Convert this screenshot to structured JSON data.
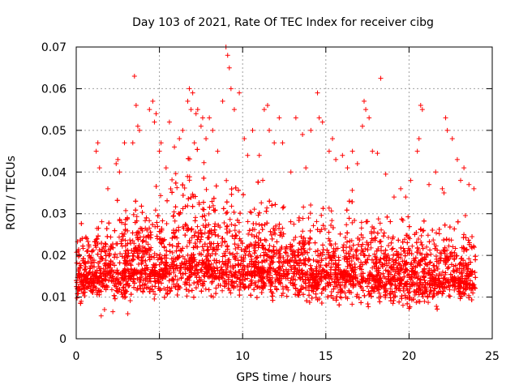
{
  "chart_data": {
    "type": "scatter",
    "title": "Day 103 of 2021, Rate Of TEC Index for receiver cibg",
    "xlabel": "GPS time / hours",
    "ylabel": "ROTI / TECUs",
    "xlim": [
      0,
      25
    ],
    "ylim": [
      0,
      0.07
    ],
    "xticks": [
      "0",
      "5",
      "10",
      "15",
      "20",
      "25"
    ],
    "yticks": [
      "0",
      "0.01",
      "0.02",
      "0.03",
      "0.04",
      "0.05",
      "0.06",
      "0.07"
    ],
    "grid": true,
    "marker": "plus",
    "color": "#ff0000",
    "series": [
      {
        "x": [
          0.0,
          0.2,
          0.4,
          0.6,
          0.8,
          1.0,
          1.2,
          1.4,
          1.6,
          1.8,
          2.0,
          2.2,
          2.4,
          2.6,
          2.8,
          3.0,
          3.2,
          3.4,
          3.6,
          3.8,
          4.0,
          4.2,
          4.4,
          4.6,
          4.8,
          5.0,
          5.2,
          5.4,
          5.6,
          5.8,
          6.0,
          6.2,
          6.4,
          6.6,
          6.8,
          7.0,
          7.2,
          7.4,
          7.6,
          7.8,
          8.0,
          8.2,
          8.4,
          8.6,
          8.8,
          9.0,
          9.2,
          9.4,
          9.6,
          9.8,
          10.0,
          10.2,
          10.4,
          10.6,
          10.8,
          11.0,
          11.2,
          11.4,
          11.6,
          11.8,
          12.0,
          12.2,
          12.4,
          12.6,
          12.8,
          13.0,
          13.2,
          13.4,
          13.6,
          13.8,
          14.0,
          14.2,
          14.4,
          14.6,
          14.8,
          15.0,
          15.2,
          15.4,
          15.6,
          15.8,
          16.0,
          16.2,
          16.4,
          16.6,
          16.8,
          17.0,
          17.2,
          17.4,
          17.6,
          17.8,
          18.0,
          18.2,
          18.4,
          18.6,
          18.8,
          19.0,
          19.2,
          19.4,
          19.6,
          19.8,
          20.0,
          20.2,
          20.4,
          20.6,
          20.8,
          21.0,
          21.2,
          21.4,
          21.6,
          21.8,
          22.0,
          22.2,
          22.4,
          22.6,
          22.8,
          23.0,
          23.2,
          23.4,
          23.6,
          23.8,
          24.0
        ],
        "y_center": [
          0.0155,
          0.016,
          0.0158,
          0.0152,
          0.015,
          0.0148,
          0.0152,
          0.0155,
          0.0158,
          0.016,
          0.0162,
          0.016,
          0.0158,
          0.016,
          0.0163,
          0.0165,
          0.0167,
          0.017,
          0.0168,
          0.0166,
          0.0165,
          0.0168,
          0.017,
          0.0172,
          0.017,
          0.0168,
          0.017,
          0.0172,
          0.0175,
          0.0178,
          0.018,
          0.0182,
          0.0185,
          0.0187,
          0.019,
          0.0192,
          0.019,
          0.0188,
          0.0186,
          0.0185,
          0.0183,
          0.018,
          0.0182,
          0.0185,
          0.0183,
          0.018,
          0.0178,
          0.0176,
          0.0175,
          0.0173,
          0.0172,
          0.017,
          0.0172,
          0.0175,
          0.0173,
          0.017,
          0.0168,
          0.017,
          0.0172,
          0.017,
          0.0168,
          0.0166,
          0.0165,
          0.0167,
          0.017,
          0.0172,
          0.017,
          0.0168,
          0.0166,
          0.0165,
          0.0163,
          0.016,
          0.0162,
          0.0165,
          0.0167,
          0.0165,
          0.0163,
          0.0162,
          0.016,
          0.0158,
          0.016,
          0.0162,
          0.0165,
          0.0163,
          0.016,
          0.0158,
          0.0157,
          0.0158,
          0.016,
          0.0158,
          0.0155,
          0.0152,
          0.015,
          0.0148,
          0.015,
          0.0152,
          0.015,
          0.0148,
          0.0146,
          0.0145,
          0.0147,
          0.015,
          0.0148,
          0.0146,
          0.0145,
          0.0147,
          0.0148,
          0.015,
          0.0148,
          0.0146,
          0.0145,
          0.0147,
          0.015,
          0.0148,
          0.0146,
          0.0145,
          0.0147,
          0.015,
          0.0152,
          0.0153,
          0.015
        ],
        "y_upper": [
          0.029,
          0.03,
          0.028,
          0.027,
          0.028,
          0.03,
          0.032,
          0.03,
          0.029,
          0.031,
          0.033,
          0.035,
          0.034,
          0.036,
          0.035,
          0.034,
          0.036,
          0.038,
          0.04,
          0.038,
          0.036,
          0.035,
          0.034,
          0.036,
          0.038,
          0.037,
          0.035,
          0.036,
          0.039,
          0.041,
          0.04,
          0.042,
          0.044,
          0.045,
          0.046,
          0.047,
          0.046,
          0.045,
          0.044,
          0.042,
          0.04,
          0.039,
          0.038,
          0.037,
          0.039,
          0.041,
          0.043,
          0.042,
          0.04,
          0.039,
          0.038,
          0.037,
          0.036,
          0.036,
          0.038,
          0.04,
          0.039,
          0.037,
          0.036,
          0.035,
          0.034,
          0.034,
          0.035,
          0.036,
          0.035,
          0.034,
          0.033,
          0.034,
          0.036,
          0.037,
          0.036,
          0.035,
          0.034,
          0.036,
          0.038,
          0.037,
          0.036,
          0.035,
          0.034,
          0.033,
          0.033,
          0.034,
          0.035,
          0.036,
          0.035,
          0.034,
          0.036,
          0.038,
          0.037,
          0.035,
          0.033,
          0.031,
          0.03,
          0.03,
          0.029,
          0.028,
          0.029,
          0.03,
          0.031,
          0.03,
          0.029,
          0.028,
          0.03,
          0.031,
          0.032,
          0.031,
          0.03,
          0.03,
          0.031,
          0.032,
          0.033,
          0.032,
          0.031,
          0.03,
          0.029,
          0.029,
          0.03,
          0.031,
          0.03,
          0.03,
          0.029
        ],
        "y_lower": [
          0.008,
          0.008,
          0.0075,
          0.0075,
          0.008,
          0.0085,
          0.008,
          0.0075,
          0.008,
          0.0085,
          0.009,
          0.0085,
          0.008,
          0.0075,
          0.008,
          0.0085,
          0.009,
          0.0085,
          0.008,
          0.0085,
          0.009,
          0.0095,
          0.009,
          0.0085,
          0.009,
          0.0095,
          0.01,
          0.0095,
          0.009,
          0.0085,
          0.009,
          0.0095,
          0.01,
          0.0095,
          0.009,
          0.0095,
          0.01,
          0.0105,
          0.01,
          0.0095,
          0.009,
          0.0095,
          0.01,
          0.0095,
          0.009,
          0.0085,
          0.009,
          0.0095,
          0.009,
          0.0085,
          0.009,
          0.0095,
          0.01,
          0.0095,
          0.009,
          0.0085,
          0.009,
          0.0095,
          0.009,
          0.0085,
          0.008,
          0.0085,
          0.009,
          0.0085,
          0.008,
          0.0085,
          0.009,
          0.0085,
          0.008,
          0.0075,
          0.008,
          0.0085,
          0.008,
          0.0075,
          0.008,
          0.0085,
          0.009,
          0.0085,
          0.008,
          0.0075,
          0.008,
          0.0085,
          0.008,
          0.0075,
          0.007,
          0.0075,
          0.008,
          0.0075,
          0.007,
          0.0075,
          0.008,
          0.0085,
          0.008,
          0.0075,
          0.007,
          0.0065,
          0.007,
          0.0075,
          0.007,
          0.0065,
          0.006,
          0.0065,
          0.007,
          0.0075,
          0.007,
          0.0065,
          0.007,
          0.0075,
          0.007,
          0.0065,
          0.007,
          0.0075,
          0.008,
          0.0075,
          0.007,
          0.0075,
          0.008,
          0.0085,
          0.008,
          0.0075,
          0.008
        ]
      },
      {
        "x": [
          0.1,
          0.3,
          0.5,
          0.4,
          0.6,
          0.2,
          1.2,
          1.3,
          1.4,
          1.5,
          1.7,
          1.9,
          2.2,
          2.4,
          2.5,
          2.6,
          2.9,
          3.1,
          3.4,
          3.5,
          3.6,
          3.7,
          3.8,
          4.4,
          4.6,
          4.7,
          4.8,
          5.0,
          5.1,
          5.4,
          5.6,
          5.9,
          6.2,
          6.4,
          6.7,
          6.8,
          6.9,
          7.0,
          7.1,
          7.2,
          7.3,
          7.5,
          7.6,
          7.8,
          8.0,
          8.2,
          8.5,
          8.8,
          9.0,
          9.1,
          9.2,
          9.3,
          9.5,
          9.8,
          10.1,
          10.3,
          10.6,
          11.0,
          11.3,
          11.5,
          11.6,
          11.9,
          12.2,
          12.4,
          12.9,
          13.2,
          13.6,
          13.8,
          14.1,
          14.5,
          14.6,
          14.8,
          15.2,
          15.4,
          15.6,
          16.0,
          16.3,
          16.6,
          16.9,
          17.2,
          17.3,
          17.4,
          17.6,
          17.8,
          18.1,
          18.3,
          18.6,
          19.1,
          19.5,
          19.8,
          20.1,
          20.5,
          20.6,
          20.7,
          20.8,
          21.2,
          21.6,
          22.0,
          22.1,
          22.2,
          22.3,
          22.6,
          22.9,
          23.1,
          23.3,
          23.6,
          23.9
        ],
        "y": [
          0.021,
          0.009,
          0.012,
          0.013,
          0.016,
          0.018,
          0.045,
          0.047,
          0.041,
          0.0055,
          0.007,
          0.036,
          0.0065,
          0.042,
          0.043,
          0.04,
          0.047,
          0.006,
          0.047,
          0.063,
          0.056,
          0.051,
          0.05,
          0.055,
          0.057,
          0.052,
          0.054,
          0.045,
          0.047,
          0.041,
          0.052,
          0.046,
          0.048,
          0.05,
          0.057,
          0.06,
          0.055,
          0.059,
          0.047,
          0.054,
          0.055,
          0.051,
          0.053,
          0.048,
          0.053,
          0.05,
          0.045,
          0.057,
          0.07,
          0.068,
          0.065,
          0.06,
          0.055,
          0.059,
          0.048,
          0.044,
          0.05,
          0.044,
          0.055,
          0.056,
          0.05,
          0.047,
          0.053,
          0.047,
          0.04,
          0.053,
          0.049,
          0.041,
          0.05,
          0.059,
          0.053,
          0.052,
          0.045,
          0.048,
          0.043,
          0.044,
          0.041,
          0.045,
          0.042,
          0.051,
          0.057,
          0.055,
          0.053,
          0.045,
          0.0445,
          0.0625,
          0.0395,
          0.034,
          0.036,
          0.034,
          0.038,
          0.045,
          0.048,
          0.056,
          0.055,
          0.037,
          0.04,
          0.036,
          0.035,
          0.053,
          0.05,
          0.048,
          0.043,
          0.038,
          0.041,
          0.037,
          0.036
        ]
      }
    ]
  }
}
